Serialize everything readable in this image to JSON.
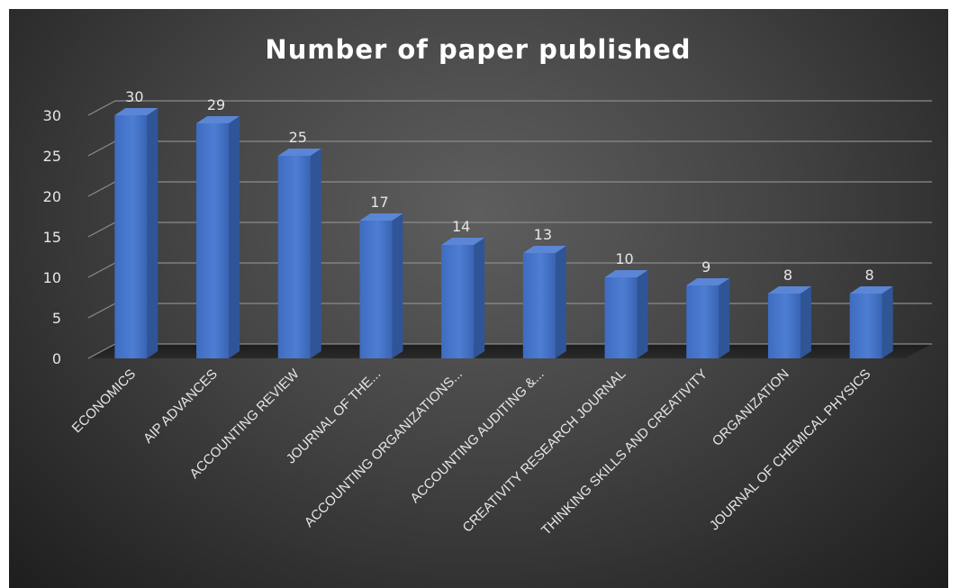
{
  "chart_data": {
    "type": "bar",
    "title": "Number of paper published",
    "xlabel": "",
    "ylabel": "",
    "categories": [
      "ECONOMICS",
      "AIP ADVANCES",
      "ACCOUNTING REVIEW",
      "JOURNAL OF THE...",
      "ACCOUNTING ORGANIZATIONS...",
      "ACCOUNTING AUDITING &...",
      "CREATIVITY RESEARCH JOURNAL",
      "THINKING SKILLS AND CREATIVITY",
      "ORGANIZATION",
      "JOURNAL OF CHEMICAL PHYSICS"
    ],
    "values": [
      30,
      29,
      25,
      17,
      14,
      13,
      10,
      9,
      8,
      8
    ],
    "ylim": [
      0,
      30
    ],
    "yticks": [
      0,
      5,
      10,
      15,
      20,
      25,
      30
    ],
    "grid": true,
    "legend": "none",
    "style": "3d-column",
    "colors": {
      "bar_front": "#4472c4",
      "bar_top": "#5b86d6",
      "bar_side": "#2f5597",
      "background": "#3c3c3c",
      "gridline": "#8c8c8c",
      "text": "#e6e6e6"
    }
  }
}
